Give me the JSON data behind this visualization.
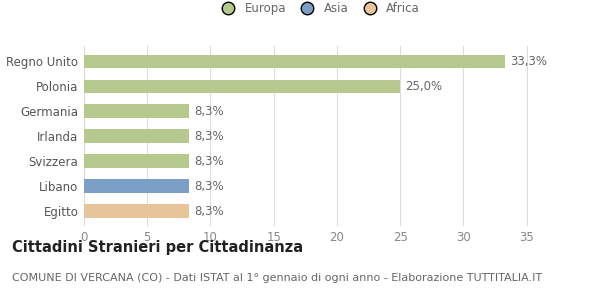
{
  "categories": [
    "Egitto",
    "Libano",
    "Svizzera",
    "Irlanda",
    "Germania",
    "Polonia",
    "Regno Unito"
  ],
  "values": [
    8.3,
    8.3,
    8.3,
    8.3,
    8.3,
    25.0,
    33.3
  ],
  "colors": [
    "#e8c49a",
    "#7b9fc7",
    "#b5c98e",
    "#b5c98e",
    "#b5c98e",
    "#b5c98e",
    "#b5c98e"
  ],
  "labels": [
    "8,3%",
    "8,3%",
    "8,3%",
    "8,3%",
    "8,3%",
    "25,0%",
    "33,3%"
  ],
  "legend": [
    {
      "label": "Europa",
      "color": "#b5c98e"
    },
    {
      "label": "Asia",
      "color": "#7b9fc7"
    },
    {
      "label": "Africa",
      "color": "#e8c49a"
    }
  ],
  "xlim": [
    0,
    37
  ],
  "xticks": [
    0,
    5,
    10,
    15,
    20,
    25,
    30,
    35
  ],
  "title": "Cittadini Stranieri per Cittadinanza",
  "subtitle": "COMUNE DI VERCANA (CO) - Dati ISTAT al 1° gennaio di ogni anno - Elaborazione TUTTITALIA.IT",
  "background_color": "#ffffff",
  "grid_color": "#dddddd",
  "bar_height": 0.55,
  "label_fontsize": 8.5,
  "tick_fontsize": 8.5,
  "title_fontsize": 10.5,
  "subtitle_fontsize": 8.0
}
